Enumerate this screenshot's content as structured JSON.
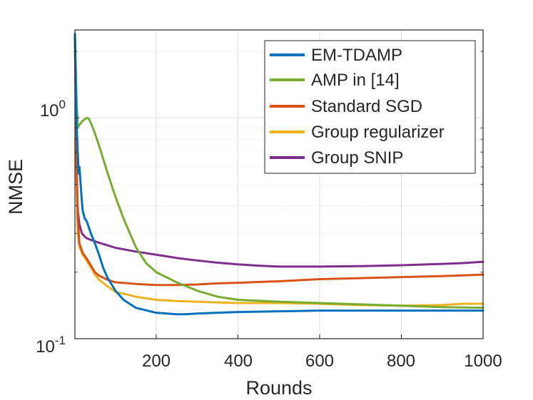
{
  "chart_data": {
    "type": "line",
    "title": "",
    "xlabel": "Rounds",
    "ylabel": "NMSE",
    "xlim": [
      1,
      1000
    ],
    "ylim": [
      0.1,
      2.5
    ],
    "yscale": "log",
    "grid": true,
    "legend_position": "top-right",
    "x_ticks": [
      {
        "value": 200,
        "label": "200"
      },
      {
        "value": 400,
        "label": "400"
      },
      {
        "value": 600,
        "label": "600"
      },
      {
        "value": 800,
        "label": "800"
      },
      {
        "value": 1000,
        "label": "1000"
      }
    ],
    "y_ticks": [
      {
        "value": 1,
        "base": "10",
        "exponent": "0"
      },
      {
        "value": 0.1,
        "base": "10",
        "exponent": "-1"
      }
    ],
    "series": [
      {
        "name": "EM-TDAMP",
        "color": "#0072BD",
        "x": [
          1,
          5,
          10,
          12,
          15,
          18,
          20,
          25,
          30,
          40,
          50,
          60,
          70,
          80,
          100,
          120,
          150,
          200,
          250,
          270,
          300,
          350,
          400,
          500,
          600,
          700,
          800,
          900,
          1000
        ],
        "y": [
          2.4,
          0.95,
          0.56,
          0.6,
          0.5,
          0.42,
          0.38,
          0.35,
          0.34,
          0.3,
          0.27,
          0.24,
          0.21,
          0.19,
          0.165,
          0.15,
          0.138,
          0.131,
          0.129,
          0.129,
          0.13,
          0.131,
          0.132,
          0.133,
          0.134,
          0.134,
          0.134,
          0.134,
          0.134
        ]
      },
      {
        "name": "AMP in [14]",
        "color": "#77AC30",
        "x": [
          1,
          5,
          8,
          12,
          20,
          30,
          35,
          40,
          50,
          60,
          80,
          100,
          120,
          150,
          175,
          200,
          250,
          300,
          350,
          400,
          500,
          600,
          700,
          800,
          900,
          1000
        ],
        "y": [
          2.4,
          1.2,
          0.9,
          0.93,
          0.97,
          1.0,
          0.99,
          0.95,
          0.85,
          0.75,
          0.57,
          0.44,
          0.35,
          0.26,
          0.22,
          0.2,
          0.18,
          0.165,
          0.155,
          0.15,
          0.147,
          0.145,
          0.143,
          0.141,
          0.139,
          0.138
        ]
      },
      {
        "name": "Standard SGD",
        "color": "#D95319",
        "x": [
          1,
          5,
          8,
          12,
          20,
          30,
          40,
          50,
          60,
          80,
          100,
          150,
          200,
          250,
          300,
          350,
          400,
          500,
          600,
          700,
          800,
          900,
          1000
        ],
        "y": [
          2.4,
          0.6,
          0.35,
          0.27,
          0.245,
          0.23,
          0.215,
          0.2,
          0.193,
          0.185,
          0.18,
          0.177,
          0.175,
          0.175,
          0.176,
          0.178,
          0.179,
          0.182,
          0.186,
          0.188,
          0.19,
          0.192,
          0.195
        ]
      },
      {
        "name": "Group regularizer",
        "color": "#EDB120",
        "x": [
          1,
          5,
          8,
          12,
          20,
          30,
          40,
          50,
          60,
          80,
          100,
          150,
          200,
          250,
          300,
          350,
          400,
          500,
          600,
          700,
          800,
          900,
          950,
          1000
        ],
        "y": [
          2.4,
          0.5,
          0.3,
          0.26,
          0.24,
          0.225,
          0.21,
          0.195,
          0.185,
          0.173,
          0.163,
          0.155,
          0.15,
          0.148,
          0.147,
          0.146,
          0.145,
          0.145,
          0.144,
          0.142,
          0.141,
          0.142,
          0.144,
          0.144
        ]
      },
      {
        "name": "Group SNIP",
        "color": "#7E2F8E",
        "x": [
          1,
          5,
          8,
          12,
          18,
          25,
          30,
          40,
          50,
          60,
          80,
          100,
          150,
          200,
          250,
          300,
          350,
          400,
          450,
          500,
          550,
          600,
          700,
          800,
          900,
          950,
          1000
        ],
        "y": [
          2.4,
          0.6,
          0.38,
          0.33,
          0.3,
          0.29,
          0.285,
          0.28,
          0.276,
          0.272,
          0.265,
          0.258,
          0.248,
          0.24,
          0.232,
          0.226,
          0.221,
          0.217,
          0.214,
          0.212,
          0.212,
          0.212,
          0.213,
          0.215,
          0.218,
          0.22,
          0.223
        ]
      }
    ]
  }
}
